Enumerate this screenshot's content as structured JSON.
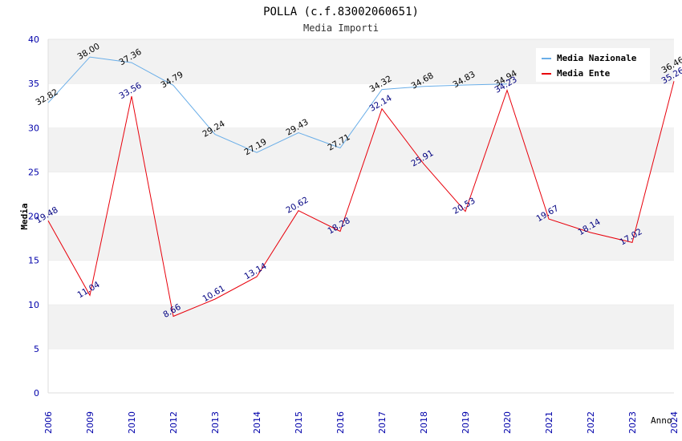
{
  "chart_data": {
    "type": "line",
    "title": "POLLA (c.f.83002060651)",
    "subtitle": "Media Importi",
    "xlabel": "Anno",
    "ylabel": "Media",
    "ylim": [
      0,
      40
    ],
    "yticks": [
      0,
      5,
      10,
      15,
      20,
      25,
      30,
      35,
      40
    ],
    "categories": [
      "2006",
      "2009",
      "2010",
      "2012",
      "2013",
      "2014",
      "2015",
      "2016",
      "2017",
      "2018",
      "2019",
      "2020",
      "2021",
      "2022",
      "2023",
      "2024"
    ],
    "series": [
      {
        "name": "Media Nazionale",
        "color": "#6aaee8",
        "values": [
          32.82,
          38.0,
          37.36,
          34.79,
          29.24,
          27.19,
          29.43,
          27.71,
          34.32,
          34.68,
          34.83,
          34.94,
          null,
          null,
          null,
          36.46
        ],
        "labels": [
          "32.82",
          "38.00",
          "37.36",
          "34.79",
          "29.24",
          "27.19",
          "29.43",
          "27.71",
          "34.32",
          "34.68",
          "34.83",
          "34.94",
          "",
          "",
          "",
          "36.46"
        ]
      },
      {
        "name": "Media Ente",
        "color": "#e8000b",
        "values": [
          19.48,
          11.04,
          33.56,
          8.66,
          10.61,
          13.14,
          20.62,
          18.28,
          32.14,
          25.91,
          20.53,
          34.23,
          19.67,
          18.14,
          17.02,
          35.26
        ],
        "labels": [
          "19.48",
          "11.04",
          "33.56",
          "8.66",
          "10.61",
          "13.14",
          "20.62",
          "18.28",
          "32.14",
          "25.91",
          "20.53",
          "34.23",
          "19.67",
          "18.14",
          "17.02",
          "35.26"
        ]
      }
    ],
    "grid": "alternating horizontal bands",
    "legend_position": "top-right"
  }
}
